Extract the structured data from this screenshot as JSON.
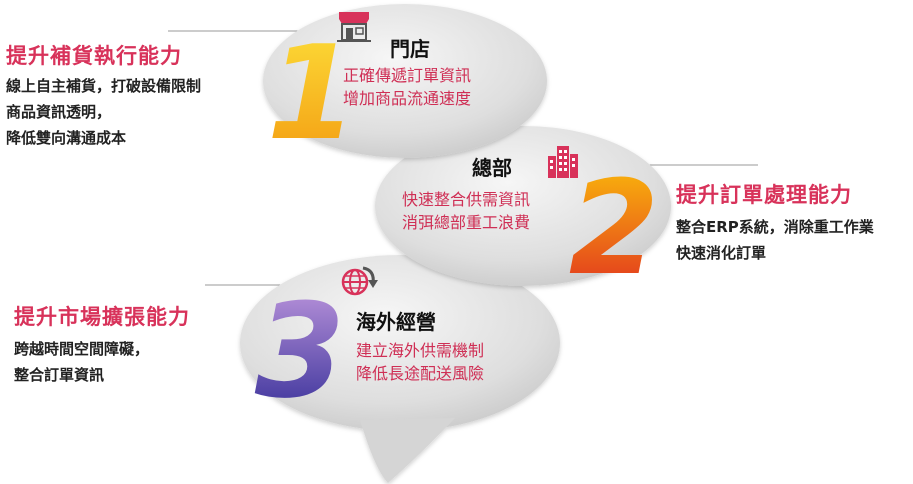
{
  "sections": [
    {
      "number": "1",
      "name": "門店",
      "bubble_lines": [
        "正確傳遞訂單資訊",
        "增加商品流通速度"
      ],
      "side_title": "提升補貨執行能力",
      "side_lines": [
        "線上自主補貨，打破設備限制",
        "商品資訊透明，",
        "降低雙向溝通成本"
      ],
      "icon": "store-icon"
    },
    {
      "number": "2",
      "name": "總部",
      "bubble_lines": [
        "快速整合供需資訊",
        "消弭總部重工浪費"
      ],
      "side_title": "提升訂單處理能力",
      "side_lines": [
        "整合ERP系統，消除重工作業",
        "快速消化訂單"
      ],
      "icon": "building-icon"
    },
    {
      "number": "3",
      "name": "海外經營",
      "bubble_lines": [
        "建立海外供需機制",
        "降低長途配送風險"
      ],
      "side_title": "提升市場擴張能力",
      "side_lines": [
        "跨越時間空間障礙，",
        "整合訂單資訊"
      ],
      "icon": "globe-icon"
    }
  ],
  "colors": {
    "accent": "#d8325a",
    "bubble_desc": "#cf2f55",
    "bubble_fill": "#dcdcdc",
    "num1": [
      "#fde03a",
      "#f39a10"
    ],
    "num2": [
      "#fcc20a",
      "#e02b20"
    ],
    "num3": [
      "#b98fd0",
      "#3b2f9a"
    ]
  }
}
